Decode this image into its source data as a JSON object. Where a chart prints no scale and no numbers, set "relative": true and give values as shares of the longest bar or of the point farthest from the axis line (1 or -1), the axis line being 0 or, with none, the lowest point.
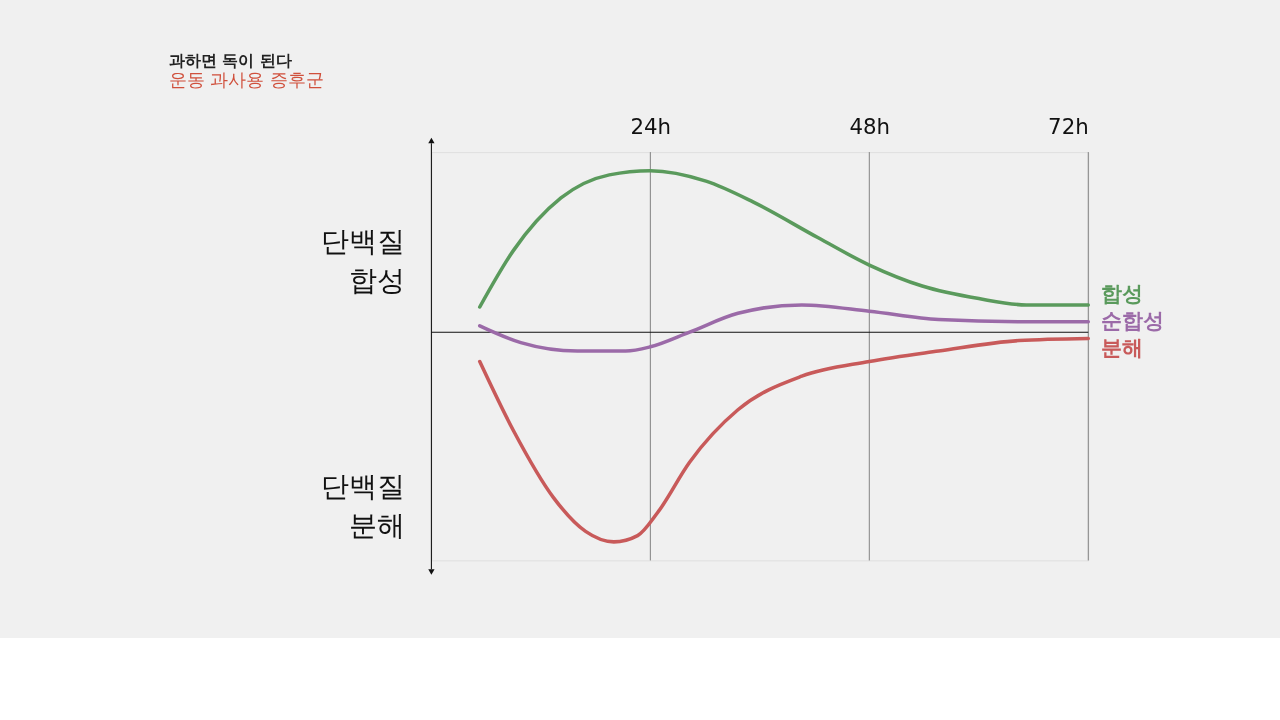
{
  "chart_data": {
    "type": "line",
    "title": "과하면 독이 된다",
    "subtitle": "운동 과사용 증후군",
    "relative": true,
    "xlim": [
      0,
      72
    ],
    "xticks": [
      {
        "value": 24,
        "label": "24h"
      },
      {
        "value": 48,
        "label": "48h"
      },
      {
        "value": 72,
        "label": "72h"
      }
    ],
    "tick_labels": "x",
    "grid": "x",
    "line_style": "solid",
    "marker": "none",
    "annotations": [
      "단백질\n합성",
      "단백질\n분해"
    ],
    "series": [
      {
        "name": "합성",
        "color": "#5a9a5c",
        "x": [
          5.3,
          9.0,
          14.2,
          19.5,
          24,
          30.1,
          35.3,
          42.4,
          48,
          53.8,
          60,
          65.2,
          72
        ],
        "values": [
          0.12,
          0.39,
          0.64,
          0.75,
          0.77,
          0.72,
          0.62,
          0.45,
          0.32,
          0.22,
          0.16,
          0.13,
          0.13
        ]
      },
      {
        "name": "순합성",
        "color": "#9b6aa8",
        "x": [
          5.3,
          9.8,
          16,
          21.3,
          24,
          28.3,
          33.6,
          40.6,
          48,
          55.6,
          64.4,
          72
        ],
        "values": [
          0.03,
          -0.05,
          -0.09,
          -0.09,
          -0.07,
          0,
          0.09,
          0.13,
          0.1,
          0.06,
          0.05,
          0.05
        ]
      },
      {
        "name": "분해",
        "color": "#c85a5a",
        "x": [
          5.3,
          9.0,
          13.4,
          16.9,
          20,
          22.6,
          24.8,
          28.3,
          33.6,
          40.6,
          48,
          55.6,
          64.4,
          72
        ],
        "values": [
          -0.14,
          -0.47,
          -0.79,
          -0.95,
          -1,
          -0.97,
          -0.86,
          -0.62,
          -0.37,
          -0.21,
          -0.14,
          -0.09,
          -0.04,
          -0.03
        ]
      }
    ]
  }
}
